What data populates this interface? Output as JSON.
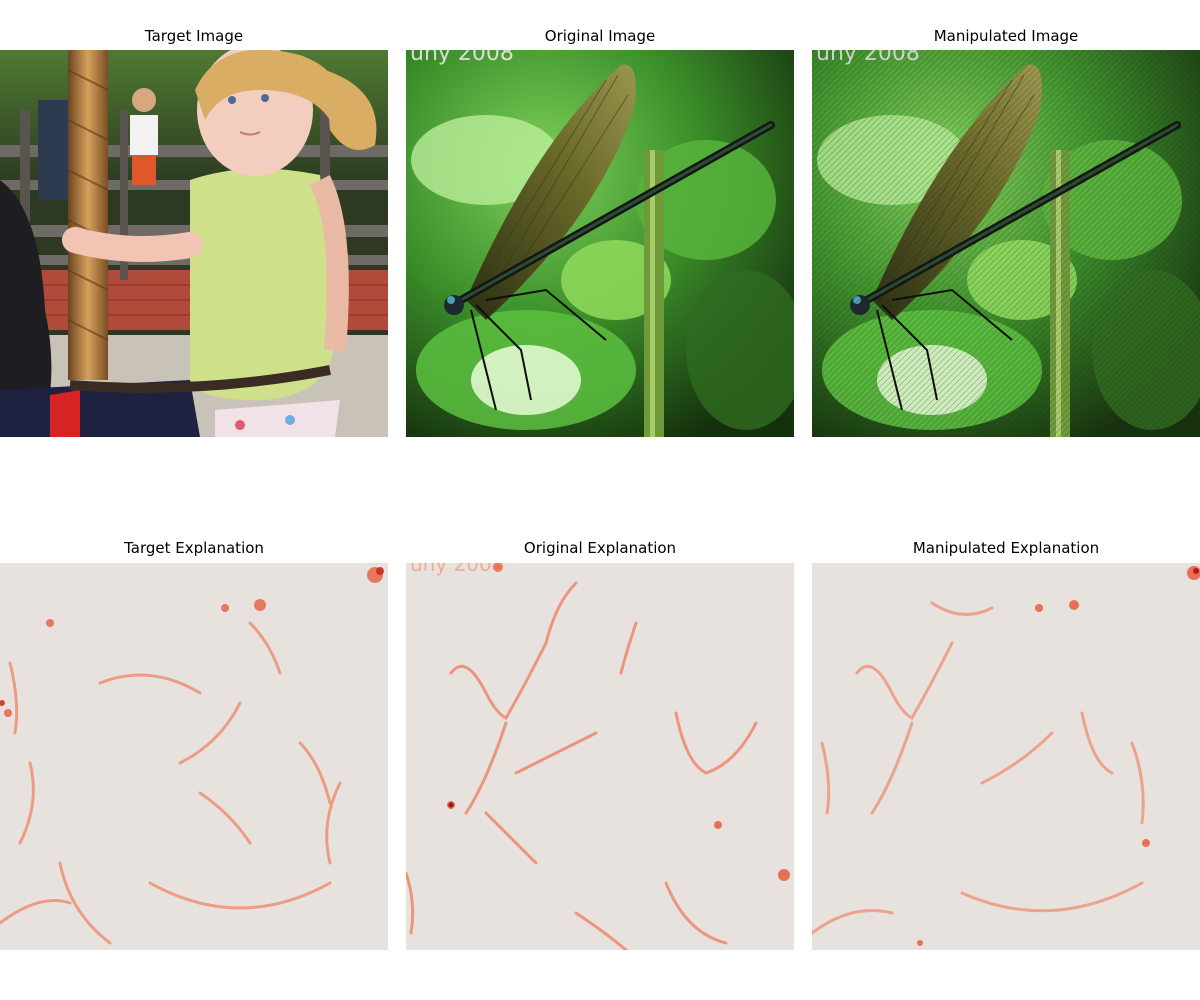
{
  "figure": {
    "panels": [
      {
        "key": "target_image",
        "title": "Target Image"
      },
      {
        "key": "original_image",
        "title": "Original Image"
      },
      {
        "key": "manipulated_image",
        "title": "Manipulated Image"
      },
      {
        "key": "target_explanation",
        "title": "Target Explanation"
      },
      {
        "key": "original_explanation",
        "title": "Original Explanation"
      },
      {
        "key": "manipulated_explanation",
        "title": "Manipulated Explanation"
      }
    ],
    "watermark_text": "uny 2008"
  },
  "colors": {
    "heatmap_background": "#e8e2de",
    "heatmap_stroke": "#f0633e",
    "heatmap_peak": "#c9261c",
    "leaf_green": "#4caf3a",
    "dark_green": "#1c3a12",
    "wing": "#6a6a28"
  }
}
